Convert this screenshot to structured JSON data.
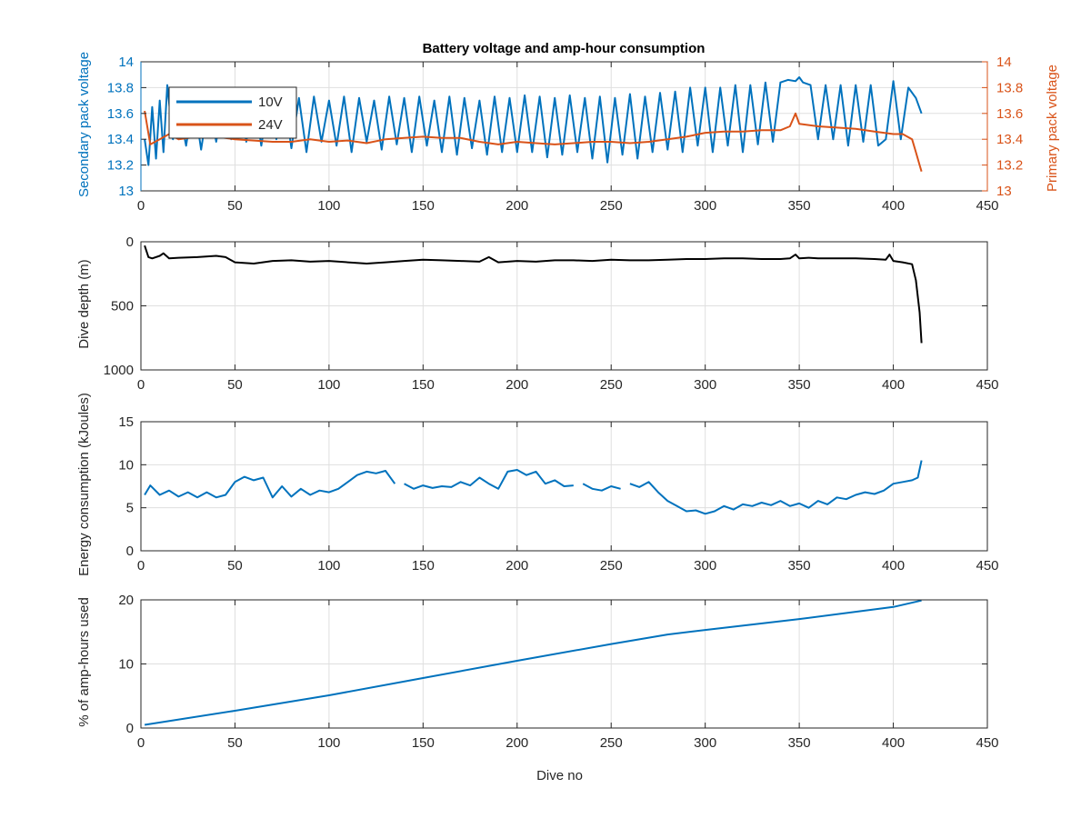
{
  "title": "Battery voltage and amp-hour consumption",
  "colors": {
    "blue": "#0072BD",
    "orange": "#D95319",
    "black": "#000000",
    "axis": "#262626",
    "grid": "#dfdfdf"
  },
  "chart_data": [
    {
      "type": "line",
      "title": "Battery voltage and amp-hour consumption",
      "xlabel": "",
      "xlim": [
        0,
        450
      ],
      "xticks": [
        0,
        50,
        100,
        150,
        200,
        250,
        300,
        350,
        400,
        450
      ],
      "ylabel": "Secondary pack voltage",
      "ylim": [
        13,
        14
      ],
      "yticks": [
        13,
        13.2,
        13.4,
        13.6,
        13.8,
        14
      ],
      "ylabel_right": "Primary pack voltage",
      "ylim_right": [
        13,
        14
      ],
      "yticks_right": [
        13,
        13.2,
        13.4,
        13.6,
        13.8,
        14
      ],
      "grid": true,
      "legend": {
        "placement": "top-left",
        "entries": [
          "10V",
          "24V"
        ]
      },
      "series": [
        {
          "name": "10V",
          "axis": "left",
          "color": "#0072BD",
          "x": [
            2,
            4,
            6,
            8,
            10,
            12,
            14,
            17,
            20,
            24,
            28,
            32,
            36,
            40,
            44,
            48,
            52,
            56,
            60,
            64,
            68,
            72,
            76,
            80,
            84,
            88,
            92,
            96,
            100,
            104,
            108,
            112,
            116,
            120,
            124,
            128,
            132,
            136,
            140,
            144,
            148,
            152,
            156,
            160,
            164,
            168,
            172,
            176,
            180,
            184,
            188,
            192,
            196,
            200,
            204,
            208,
            212,
            216,
            220,
            224,
            228,
            232,
            236,
            240,
            244,
            248,
            252,
            256,
            260,
            264,
            268,
            272,
            276,
            280,
            284,
            288,
            292,
            296,
            300,
            304,
            308,
            312,
            316,
            320,
            324,
            328,
            332,
            336,
            340,
            344,
            348,
            350,
            352,
            356,
            360,
            364,
            368,
            372,
            376,
            380,
            384,
            388,
            392,
            396,
            400,
            404,
            408,
            412,
            415
          ],
          "y": [
            13.4,
            13.2,
            13.65,
            13.25,
            13.7,
            13.3,
            13.82,
            13.4,
            13.65,
            13.35,
            13.72,
            13.32,
            13.7,
            13.38,
            13.73,
            13.4,
            13.7,
            13.38,
            13.73,
            13.35,
            13.72,
            13.4,
            13.75,
            13.33,
            13.72,
            13.3,
            13.73,
            13.38,
            13.7,
            13.35,
            13.73,
            13.3,
            13.72,
            13.38,
            13.7,
            13.32,
            13.73,
            13.36,
            13.72,
            13.3,
            13.73,
            13.35,
            13.7,
            13.3,
            13.73,
            13.28,
            13.72,
            13.33,
            13.7,
            13.28,
            13.73,
            13.3,
            13.72,
            13.3,
            13.74,
            13.3,
            13.73,
            13.26,
            13.72,
            13.28,
            13.74,
            13.3,
            13.72,
            13.25,
            13.73,
            13.22,
            13.72,
            13.28,
            13.75,
            13.25,
            13.73,
            13.3,
            13.76,
            13.32,
            13.77,
            13.3,
            13.8,
            13.35,
            13.8,
            13.3,
            13.8,
            13.35,
            13.82,
            13.3,
            13.82,
            13.36,
            13.84,
            13.38,
            13.84,
            13.86,
            13.85,
            13.88,
            13.84,
            13.82,
            13.4,
            13.82,
            13.4,
            13.82,
            13.35,
            13.82,
            13.38,
            13.82,
            13.35,
            13.4,
            13.85,
            13.4,
            13.8,
            13.72,
            13.6
          ]
        },
        {
          "name": "24V",
          "axis": "right",
          "color": "#D95319",
          "x": [
            2,
            5,
            10,
            15,
            20,
            30,
            40,
            50,
            60,
            70,
            80,
            90,
            100,
            110,
            120,
            130,
            140,
            150,
            160,
            170,
            180,
            190,
            200,
            210,
            220,
            230,
            240,
            250,
            260,
            270,
            280,
            290,
            300,
            310,
            320,
            330,
            340,
            345,
            348,
            350,
            355,
            360,
            370,
            380,
            390,
            400,
            405,
            410,
            412,
            414,
            415
          ],
          "y": [
            13.62,
            13.36,
            13.4,
            13.44,
            13.4,
            13.42,
            13.42,
            13.4,
            13.39,
            13.38,
            13.38,
            13.4,
            13.38,
            13.39,
            13.37,
            13.4,
            13.41,
            13.42,
            13.41,
            13.41,
            13.38,
            13.36,
            13.38,
            13.37,
            13.36,
            13.37,
            13.38,
            13.38,
            13.37,
            13.38,
            13.4,
            13.42,
            13.45,
            13.46,
            13.46,
            13.47,
            13.47,
            13.5,
            13.6,
            13.52,
            13.51,
            13.5,
            13.49,
            13.48,
            13.46,
            13.44,
            13.44,
            13.4,
            13.3,
            13.2,
            13.15
          ]
        }
      ]
    },
    {
      "type": "line",
      "title": "",
      "xlabel": "",
      "xlim": [
        0,
        450
      ],
      "xticks": [
        0,
        50,
        100,
        150,
        200,
        250,
        300,
        350,
        400,
        450
      ],
      "ylabel": "Dive depth (m)",
      "ylim": [
        0,
        1000
      ],
      "y_reversed": true,
      "yticks": [
        0,
        500,
        1000
      ],
      "grid": true,
      "series": [
        {
          "color": "#000000",
          "x": [
            2,
            4,
            6,
            10,
            12,
            15,
            20,
            30,
            40,
            45,
            50,
            60,
            70,
            80,
            90,
            100,
            110,
            120,
            130,
            140,
            150,
            160,
            170,
            180,
            185,
            190,
            200,
            210,
            220,
            230,
            240,
            250,
            260,
            270,
            280,
            290,
            300,
            310,
            320,
            330,
            340,
            345,
            348,
            350,
            355,
            360,
            370,
            380,
            390,
            396,
            398,
            400,
            405,
            410,
            412,
            414,
            415
          ],
          "y": [
            30,
            120,
            130,
            110,
            90,
            130,
            125,
            120,
            110,
            120,
            160,
            170,
            150,
            145,
            155,
            150,
            160,
            170,
            160,
            150,
            140,
            145,
            150,
            155,
            120,
            160,
            150,
            155,
            145,
            145,
            150,
            140,
            145,
            145,
            140,
            135,
            135,
            130,
            130,
            135,
            135,
            130,
            100,
            130,
            125,
            130,
            130,
            130,
            135,
            140,
            100,
            150,
            160,
            175,
            300,
            550,
            790
          ]
        }
      ]
    },
    {
      "type": "line",
      "title": "",
      "xlabel": "",
      "xlim": [
        0,
        450
      ],
      "xticks": [
        0,
        50,
        100,
        150,
        200,
        250,
        300,
        350,
        400,
        450
      ],
      "ylabel": "Energy consumption (kJoules)",
      "ylim": [
        0,
        15
      ],
      "yticks": [
        0,
        5,
        10,
        15
      ],
      "grid": true,
      "series": [
        {
          "color": "#0072BD",
          "x": [
            2,
            5,
            10,
            15,
            20,
            25,
            30,
            35,
            40,
            45,
            50,
            55,
            60,
            65,
            70,
            75,
            80,
            85,
            90,
            95,
            100,
            105,
            110,
            115,
            120,
            125,
            130,
            135,
            null,
            140,
            145,
            150,
            155,
            160,
            165,
            170,
            175,
            180,
            185,
            190,
            195,
            200,
            205,
            210,
            215,
            220,
            225,
            230,
            null,
            235,
            240,
            245,
            250,
            255,
            null,
            260,
            265,
            270,
            275,
            280,
            285,
            290,
            295,
            300,
            305,
            310,
            315,
            320,
            325,
            330,
            335,
            340,
            345,
            350,
            355,
            360,
            365,
            370,
            375,
            380,
            385,
            390,
            395,
            400,
            405,
            410,
            413,
            415
          ],
          "y": [
            6.5,
            7.6,
            6.5,
            7.0,
            6.3,
            6.8,
            6.2,
            6.8,
            6.2,
            6.5,
            8.0,
            8.6,
            8.2,
            8.5,
            6.2,
            7.5,
            6.3,
            7.2,
            6.5,
            7.0,
            6.8,
            7.2,
            8.0,
            8.8,
            9.2,
            9.0,
            9.3,
            7.8,
            null,
            7.8,
            7.2,
            7.6,
            7.3,
            7.5,
            7.4,
            8.0,
            7.6,
            8.5,
            7.8,
            7.2,
            9.2,
            9.4,
            8.8,
            9.2,
            7.8,
            8.2,
            7.5,
            7.6,
            null,
            7.8,
            7.2,
            7.0,
            7.5,
            7.2,
            null,
            7.8,
            7.4,
            8.0,
            6.8,
            5.8,
            5.2,
            4.6,
            4.7,
            4.3,
            4.6,
            5.2,
            4.8,
            5.4,
            5.2,
            5.6,
            5.3,
            5.8,
            5.2,
            5.5,
            5.0,
            5.8,
            5.4,
            6.2,
            6.0,
            6.5,
            6.8,
            6.6,
            7.0,
            7.8,
            8.0,
            8.2,
            8.5,
            10.5
          ]
        }
      ]
    },
    {
      "type": "line",
      "title": "",
      "xlabel": "Dive no",
      "xlim": [
        0,
        450
      ],
      "xticks": [
        0,
        50,
        100,
        150,
        200,
        250,
        300,
        350,
        400,
        450
      ],
      "ylabel": "% of amp-hours used",
      "ylim": [
        0,
        20
      ],
      "yticks": [
        0,
        10,
        20
      ],
      "grid": true,
      "series": [
        {
          "color": "#0072BD",
          "x": [
            2,
            50,
            100,
            150,
            200,
            250,
            280,
            300,
            350,
            400,
            415
          ],
          "y": [
            0.5,
            2.7,
            5.1,
            7.8,
            10.5,
            13.1,
            14.6,
            15.3,
            17.0,
            18.9,
            19.9
          ]
        }
      ]
    }
  ]
}
